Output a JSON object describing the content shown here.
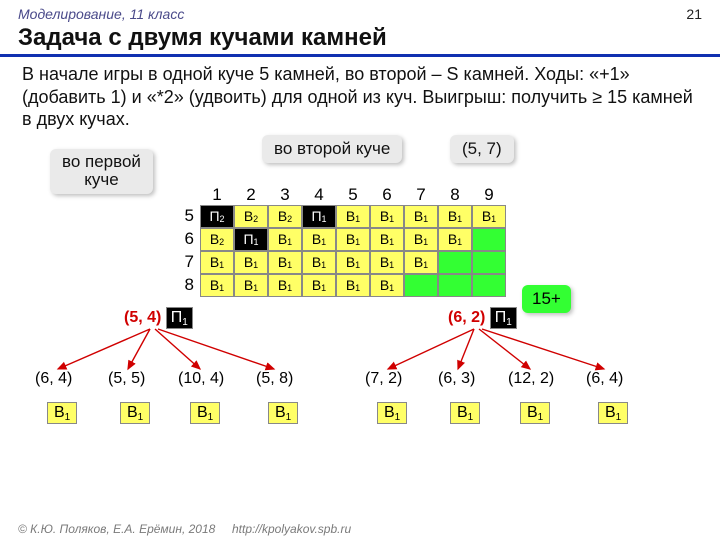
{
  "header": {
    "course": "Моделирование, 11 класс",
    "page": "21"
  },
  "title": "Задача с двумя кучами камней",
  "description": "В начале игры в одной куче 5 камней, во второй –  S камней. Ходы: «+1» (добавить 1) и «*2» (удвоить) для одной из куч. Выигрыш: получить ≥ 15 камней в двух кучах.",
  "bubbles": {
    "first": "во первой\nкуче",
    "second": "во второй куче",
    "coord": "(5, 7)"
  },
  "grid": {
    "cols": [
      "1",
      "2",
      "3",
      "4",
      "5",
      "6",
      "7",
      "8",
      "9"
    ],
    "rows": [
      "5",
      "6",
      "7",
      "8"
    ],
    "cells": [
      [
        {
          "t": "П",
          "s": "2",
          "bg": "black"
        },
        {
          "t": "В",
          "s": "2",
          "bg": "yellow"
        },
        {
          "t": "В",
          "s": "2",
          "bg": "yellow"
        },
        {
          "t": "П",
          "s": "1",
          "bg": "black"
        },
        {
          "t": "В",
          "s": "1",
          "bg": "yellow"
        },
        {
          "t": "В",
          "s": "1",
          "bg": "yellow"
        },
        {
          "t": "В",
          "s": "1",
          "bg": "yellow"
        },
        {
          "t": "В",
          "s": "1",
          "bg": "yellow"
        },
        {
          "t": "В",
          "s": "1",
          "bg": "yellow"
        }
      ],
      [
        {
          "t": "В",
          "s": "2",
          "bg": "yellow"
        },
        {
          "t": "П",
          "s": "1",
          "bg": "black"
        },
        {
          "t": "В",
          "s": "1",
          "bg": "yellow"
        },
        {
          "t": "В",
          "s": "1",
          "bg": "yellow"
        },
        {
          "t": "В",
          "s": "1",
          "bg": "yellow"
        },
        {
          "t": "В",
          "s": "1",
          "bg": "yellow"
        },
        {
          "t": "В",
          "s": "1",
          "bg": "yellow"
        },
        {
          "t": "В",
          "s": "1",
          "bg": "yellow"
        },
        {
          "t": "",
          "s": "",
          "bg": "green"
        }
      ],
      [
        {
          "t": "В",
          "s": "1",
          "bg": "yellow"
        },
        {
          "t": "В",
          "s": "1",
          "bg": "yellow"
        },
        {
          "t": "В",
          "s": "1",
          "bg": "yellow"
        },
        {
          "t": "В",
          "s": "1",
          "bg": "yellow"
        },
        {
          "t": "В",
          "s": "1",
          "bg": "yellow"
        },
        {
          "t": "В",
          "s": "1",
          "bg": "yellow"
        },
        {
          "t": "В",
          "s": "1",
          "bg": "yellow"
        },
        {
          "t": "",
          "s": "",
          "bg": "green"
        },
        {
          "t": "",
          "s": "",
          "bg": "green"
        }
      ],
      [
        {
          "t": "В",
          "s": "1",
          "bg": "yellow"
        },
        {
          "t": "В",
          "s": "1",
          "bg": "yellow"
        },
        {
          "t": "В",
          "s": "1",
          "bg": "yellow"
        },
        {
          "t": "В",
          "s": "1",
          "bg": "yellow"
        },
        {
          "t": "В",
          "s": "1",
          "bg": "yellow"
        },
        {
          "t": "В",
          "s": "1",
          "bg": "yellow"
        },
        {
          "t": "",
          "s": "",
          "bg": "green"
        },
        {
          "t": "",
          "s": "",
          "bg": "green"
        },
        {
          "t": "",
          "s": "",
          "bg": "green"
        }
      ]
    ]
  },
  "badge15": "15+",
  "trees": {
    "left": {
      "root": "(5, 4)",
      "root_badge": {
        "t": "П",
        "s": "1"
      },
      "leaves": [
        "(6, 4)",
        "(5, 5)",
        "(10, 4)",
        "(5, 8)"
      ]
    },
    "right": {
      "root": "(6, 2)",
      "root_badge": {
        "t": "П",
        "s": "1"
      },
      "leaves": [
        "(7, 2)",
        "(6, 3)",
        "(12, 2)",
        "(6, 4)"
      ]
    },
    "b1": {
      "t": "В",
      "s": "1"
    }
  },
  "footer": {
    "copyright": "© К.Ю. Поляков, Е.А. Ерёмин, 2018",
    "url": "http://kpolyakov.spb.ru"
  },
  "style": {
    "yellow": "#ffff66",
    "green": "#33ff33",
    "black": "#000000",
    "red": "#d00000",
    "arrow": "#d00000"
  }
}
